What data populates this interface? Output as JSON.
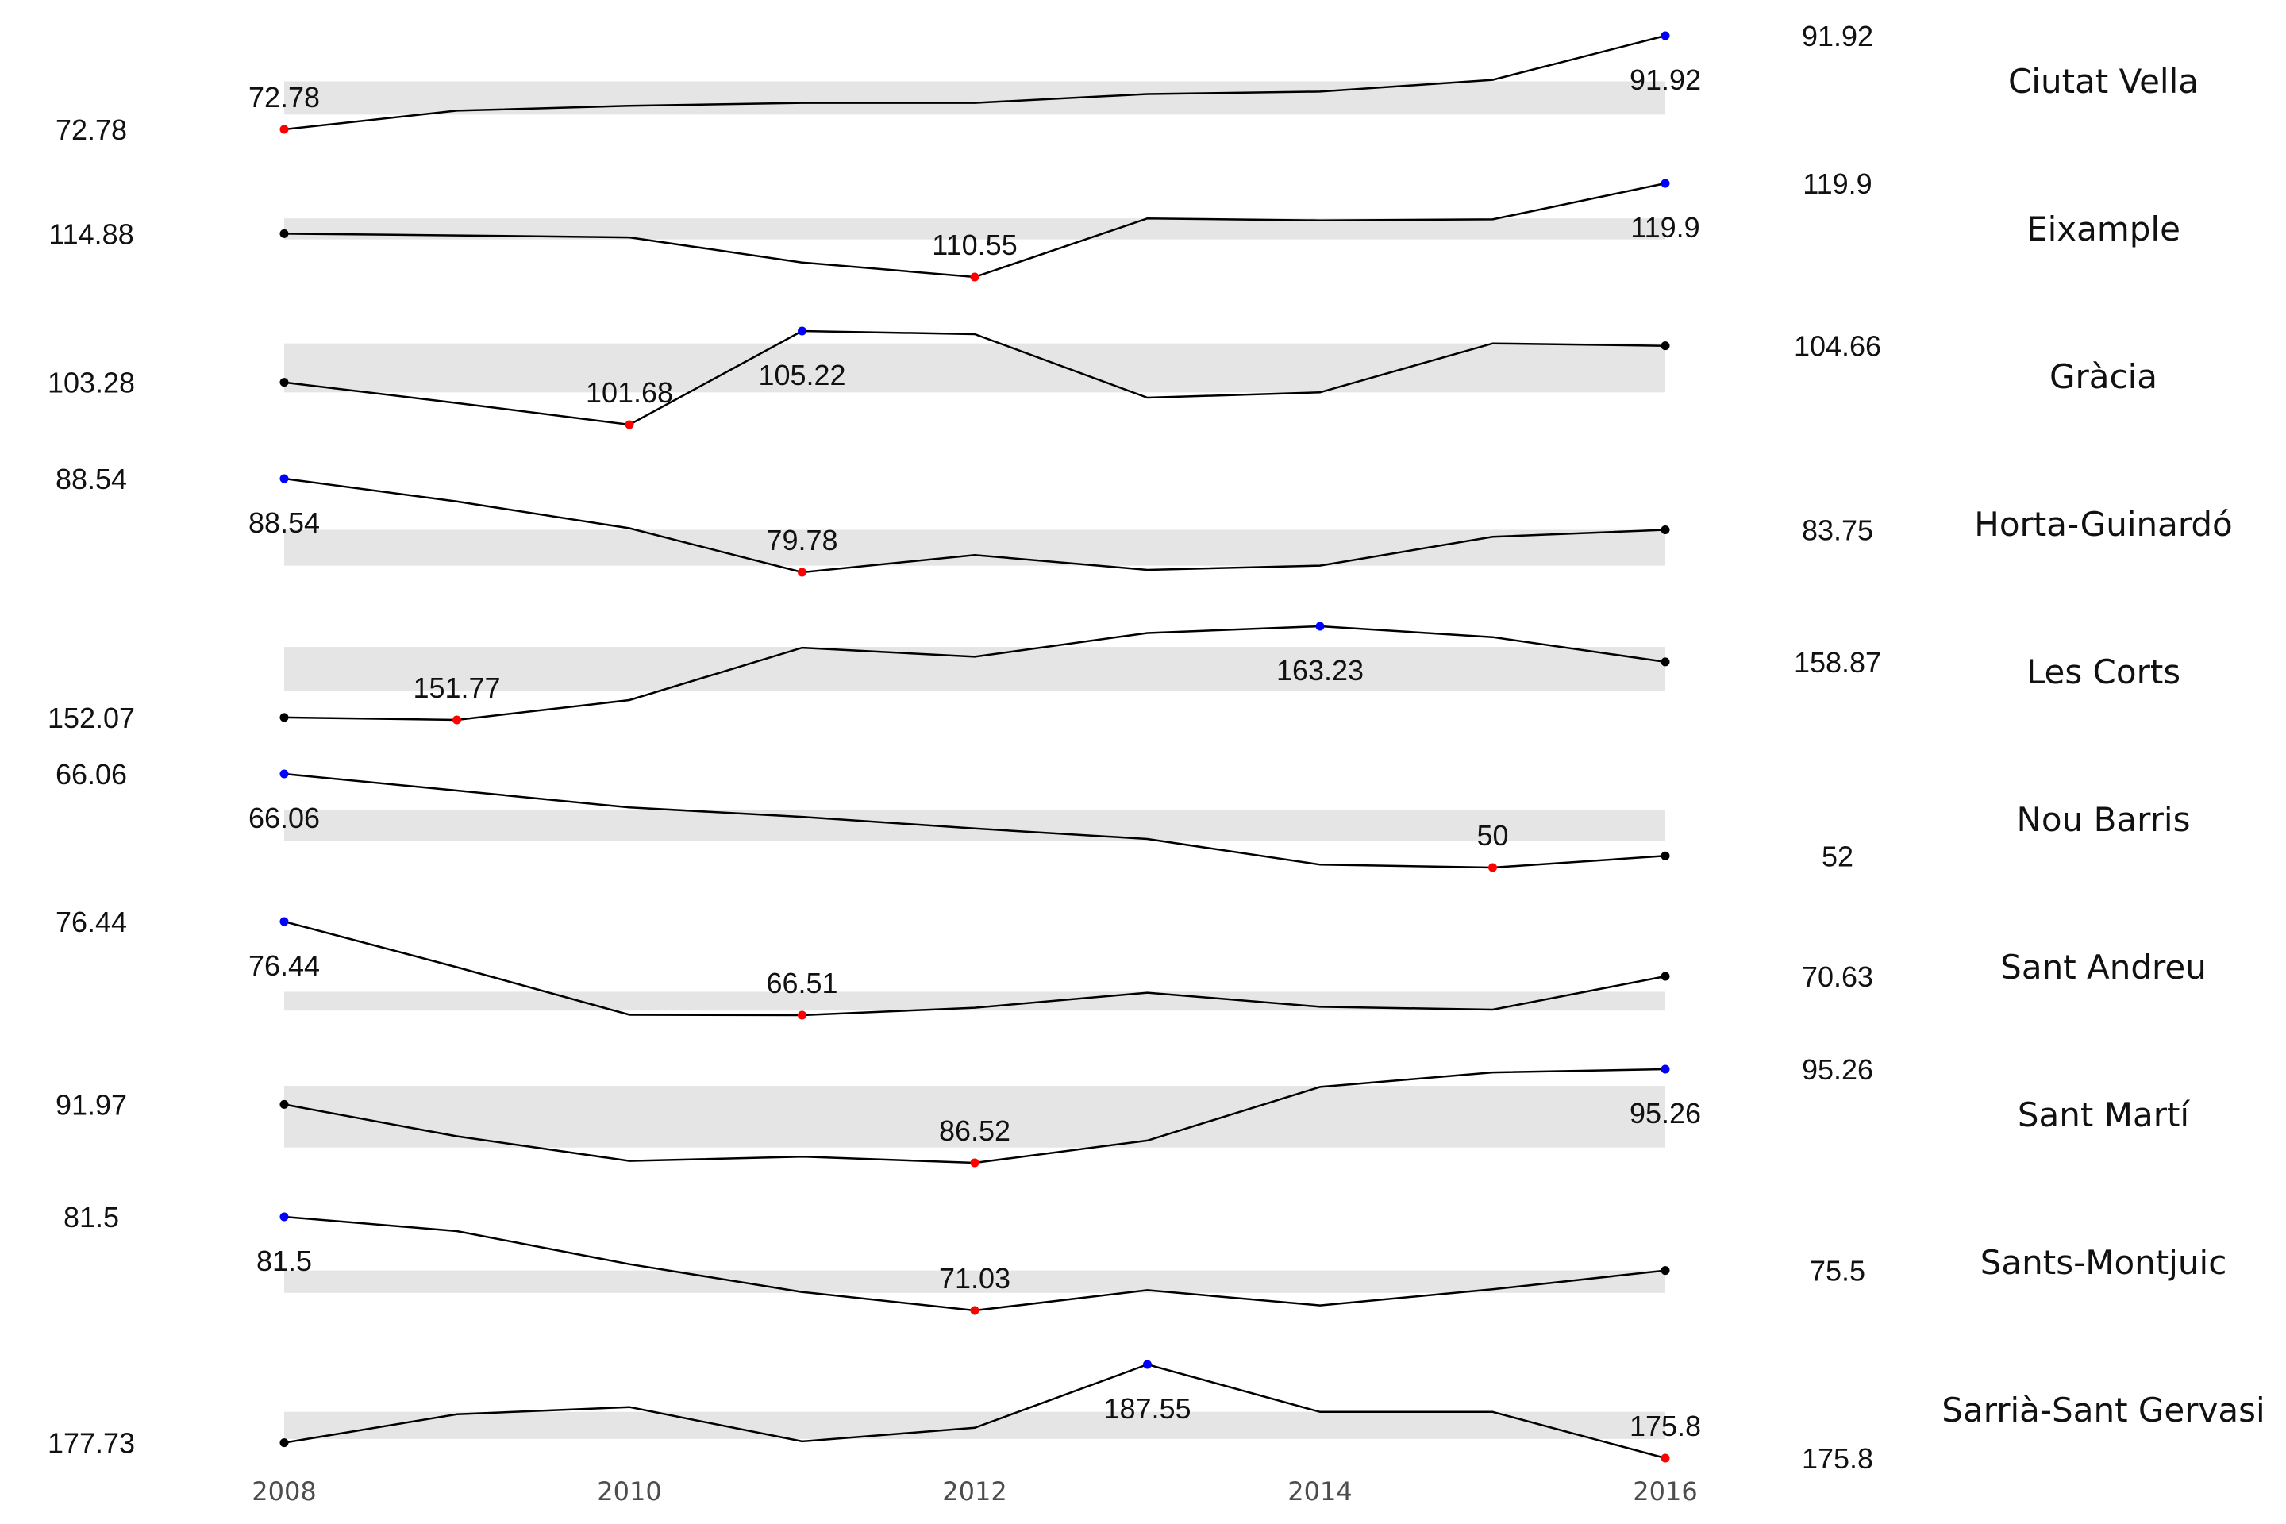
{
  "chart_data": {
    "type": "line",
    "x": [
      2008,
      2009,
      2010,
      2011,
      2012,
      2013,
      2014,
      2015,
      2016
    ],
    "x_ticks": [
      "2008",
      "2010",
      "2012",
      "2014",
      "2016"
    ],
    "xlim": [
      2008,
      2016
    ],
    "grid": false,
    "legend": "none",
    "colors": {
      "line": "#000000",
      "min_point": "#ff0000",
      "max_point": "#0000ff",
      "end_point": "#000000",
      "band": "#e5e5e5"
    },
    "panels": [
      {
        "name": "Ciutat Vella",
        "values": [
          72.78,
          76.6,
          77.6,
          78.2,
          78.2,
          80.0,
          80.5,
          82.9,
          91.92
        ],
        "iqr": [
          75.8,
          82.6
        ],
        "min_label": "72.78",
        "max_label": "91.92",
        "start_label": "72.78",
        "end_label": "91.92",
        "ylim": [
          72.78,
          91.92
        ]
      },
      {
        "name": "Eixample",
        "values": [
          114.88,
          114.7,
          114.5,
          112.0,
          110.55,
          116.4,
          116.2,
          116.3,
          119.9
        ],
        "iqr": [
          114.3,
          116.4
        ],
        "min_label": "110.55",
        "max_label": "119.9",
        "start_label": "114.88",
        "end_label": "119.9",
        "ylim": [
          110.55,
          119.9
        ]
      },
      {
        "name": "Gràcia",
        "values": [
          103.28,
          102.5,
          101.68,
          105.22,
          105.1,
          102.7,
          102.9,
          104.75,
          104.66
        ],
        "iqr": [
          102.9,
          104.75
        ],
        "min_label": "101.68",
        "max_label": "105.22",
        "start_label": "103.28",
        "end_label": "104.66",
        "ylim": [
          101.68,
          105.22
        ]
      },
      {
        "name": "Horta-Guinardó",
        "values": [
          88.54,
          86.4,
          83.9,
          79.78,
          81.4,
          80.0,
          80.4,
          83.1,
          83.75
        ],
        "iqr": [
          80.4,
          83.75
        ],
        "min_label": "79.78",
        "max_label": "88.54",
        "start_label": "88.54",
        "end_label": "83.75",
        "ylim": [
          79.78,
          88.54
        ]
      },
      {
        "name": "Les Corts",
        "values": [
          152.07,
          151.77,
          154.2,
          160.6,
          159.5,
          162.4,
          163.23,
          161.9,
          158.87
        ],
        "iqr": [
          155.3,
          160.7
        ],
        "min_label": "151.77",
        "max_label": "163.23",
        "start_label": "152.07",
        "end_label": "158.87",
        "ylim": [
          151.77,
          163.23
        ]
      },
      {
        "name": "Nou Barris",
        "values": [
          66.06,
          63.2,
          60.3,
          58.7,
          56.7,
          54.9,
          50.5,
          50.0,
          52.0
        ],
        "iqr": [
          54.5,
          59.9
        ],
        "min_label": "50",
        "max_label": "66.06",
        "start_label": "66.06",
        "end_label": "52",
        "ylim": [
          50,
          66.06
        ]
      },
      {
        "name": "Sant Andreu",
        "values": [
          76.44,
          71.6,
          66.55,
          66.51,
          67.3,
          68.9,
          67.4,
          67.1,
          70.63
        ],
        "iqr": [
          67.0,
          69.0
        ],
        "min_label": "66.51",
        "max_label": "76.44",
        "start_label": "76.44",
        "end_label": "70.63",
        "ylim": [
          66.51,
          76.44
        ]
      },
      {
        "name": "Sant Martí",
        "values": [
          91.97,
          89.0,
          86.7,
          87.1,
          86.52,
          88.6,
          93.6,
          94.96,
          95.26
        ],
        "iqr": [
          87.95,
          93.7
        ],
        "min_label": "86.52",
        "max_label": "95.26",
        "start_label": "91.97",
        "end_label": "95.26",
        "ylim": [
          86.52,
          95.26
        ]
      },
      {
        "name": "Sants-Montjuic",
        "values": [
          81.5,
          79.9,
          76.2,
          73.1,
          71.03,
          73.3,
          71.6,
          73.4,
          75.5
        ],
        "iqr": [
          73.0,
          75.5
        ],
        "min_label": "71.03",
        "max_label": "81.5",
        "start_label": "81.5",
        "end_label": "75.5",
        "ylim": [
          71.03,
          81.5
        ]
      },
      {
        "name": "Sarrià-Sant Gervasi",
        "values": [
          177.73,
          181.3,
          182.2,
          177.9,
          179.6,
          187.55,
          181.6,
          181.6,
          175.8
        ],
        "iqr": [
          178.2,
          181.6
        ],
        "min_label": "175.8",
        "max_label": "187.55",
        "start_label": "177.73",
        "end_label": "175.8",
        "ylim": [
          175.8,
          187.55
        ]
      }
    ]
  }
}
